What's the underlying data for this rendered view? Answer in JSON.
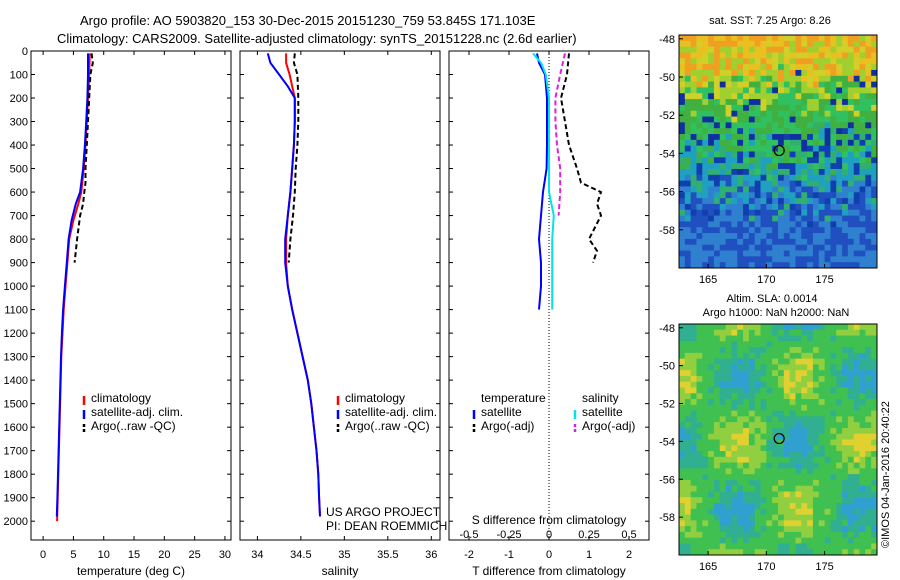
{
  "header": {
    "line1": "Argo profile: AO 5903820_153 30-Dec-2015 20151230_759 53.845S 171.103E",
    "line2": "Climatology: CARS2009. Satellite-adjusted climatology: synTS_20151228.nc (2.6d earlier)"
  },
  "side_label": "©IMOS 04-Jan-2016 20:40:22",
  "project": {
    "line1": "US ARGO PROJECT",
    "line2": "PI: DEAN ROEMMICH"
  },
  "colors": {
    "climatology": "#ff0000",
    "satellite": "#0000ff",
    "argo": "#000000",
    "sal_satellite": "#00e5e5",
    "sal_argo": "#e020e0"
  },
  "chart_data": [
    {
      "id": "temperature",
      "type": "line",
      "xlabel": "temperature (deg C)",
      "ylabel": "",
      "xlim": [
        -2,
        31
      ],
      "ylim": [
        2080,
        0
      ],
      "xticks": [
        0,
        5,
        10,
        15,
        20,
        25,
        30
      ],
      "yticks": [
        0,
        100,
        200,
        300,
        400,
        500,
        600,
        700,
        800,
        900,
        1000,
        1100,
        1200,
        1300,
        1400,
        1500,
        1600,
        1700,
        1800,
        1900,
        2000
      ],
      "legend": {
        "position": "bottom-right",
        "entries": [
          "climatology",
          "satellite-adj. clim.",
          "Argo(..raw -QC)"
        ]
      },
      "series": [
        {
          "name": "climatology",
          "color": "#ff0000",
          "dash": "",
          "points": [
            [
              7.7,
              10
            ],
            [
              7.6,
              100
            ],
            [
              7.4,
              200
            ],
            [
              7.2,
              300
            ],
            [
              7.0,
              400
            ],
            [
              6.7,
              500
            ],
            [
              6.3,
              600
            ],
            [
              5.8,
              650
            ],
            [
              5.0,
              720
            ],
            [
              4.3,
              800
            ],
            [
              4.0,
              900
            ],
            [
              3.7,
              1000
            ],
            [
              3.4,
              1100
            ],
            [
              3.2,
              1200
            ],
            [
              3.0,
              1300
            ],
            [
              2.9,
              1400
            ],
            [
              2.8,
              1500
            ],
            [
              2.7,
              1600
            ],
            [
              2.6,
              1700
            ],
            [
              2.5,
              1800
            ],
            [
              2.4,
              1900
            ],
            [
              2.3,
              2000
            ]
          ]
        },
        {
          "name": "satellite-adj. clim.",
          "color": "#0000ff",
          "dash": "",
          "points": [
            [
              7.4,
              10
            ],
            [
              7.4,
              100
            ],
            [
              7.3,
              200
            ],
            [
              7.1,
              300
            ],
            [
              6.9,
              400
            ],
            [
              6.6,
              500
            ],
            [
              6.1,
              600
            ],
            [
              5.4,
              650
            ],
            [
              4.7,
              720
            ],
            [
              4.2,
              800
            ],
            [
              3.9,
              900
            ],
            [
              3.6,
              1000
            ],
            [
              3.3,
              1100
            ],
            [
              3.1,
              1200
            ],
            [
              2.95,
              1300
            ],
            [
              2.85,
              1400
            ],
            [
              2.75,
              1500
            ],
            [
              2.65,
              1600
            ],
            [
              2.55,
              1700
            ],
            [
              2.45,
              1800
            ],
            [
              2.35,
              1900
            ],
            [
              2.25,
              1980
            ]
          ]
        },
        {
          "name": "Argo(..raw -QC)",
          "color": "#000000",
          "dash": "5,3",
          "points": [
            [
              8.0,
              10
            ],
            [
              8.2,
              50
            ],
            [
              7.8,
              100
            ],
            [
              7.6,
              200
            ],
            [
              7.4,
              300
            ],
            [
              7.2,
              400
            ],
            [
              7.0,
              500
            ],
            [
              7.0,
              560
            ],
            [
              6.8,
              600
            ],
            [
              6.6,
              650
            ],
            [
              6.1,
              700
            ],
            [
              5.6,
              800
            ],
            [
              5.2,
              900
            ]
          ]
        }
      ]
    },
    {
      "id": "salinity",
      "type": "line",
      "xlabel": "salinity",
      "ylabel": "",
      "xlim": [
        33.8,
        36.1
      ],
      "ylim": [
        2080,
        0
      ],
      "xticks": [
        34,
        34.5,
        35,
        35.5,
        36
      ],
      "legend": {
        "position": "bottom-right",
        "entries": [
          "climatology",
          "satellite-adj. clim.",
          "Argo(..raw -QC)"
        ]
      },
      "series": [
        {
          "name": "climatology",
          "color": "#ff0000",
          "dash": "",
          "points": [
            [
              34.33,
              10
            ],
            [
              34.33,
              50
            ],
            [
              34.37,
              100
            ],
            [
              34.4,
              150
            ],
            [
              34.43,
              200
            ],
            [
              34.43,
              300
            ],
            [
              34.42,
              400
            ],
            [
              34.4,
              500
            ],
            [
              34.38,
              600
            ],
            [
              34.35,
              700
            ],
            [
              34.33,
              800
            ],
            [
              34.33,
              900
            ],
            [
              34.35,
              1000
            ],
            [
              34.4,
              1100
            ],
            [
              34.46,
              1200
            ],
            [
              34.52,
              1300
            ],
            [
              34.58,
              1400
            ],
            [
              34.62,
              1500
            ],
            [
              34.65,
              1600
            ],
            [
              34.68,
              1700
            ],
            [
              34.7,
              1800
            ],
            [
              34.71,
              1900
            ],
            [
              34.72,
              1980
            ]
          ]
        },
        {
          "name": "satellite-adj. clim.",
          "color": "#0000ff",
          "dash": "",
          "points": [
            [
              34.12,
              10
            ],
            [
              34.15,
              50
            ],
            [
              34.25,
              100
            ],
            [
              34.35,
              150
            ],
            [
              34.43,
              200
            ],
            [
              34.43,
              300
            ],
            [
              34.42,
              400
            ],
            [
              34.4,
              500
            ],
            [
              34.38,
              600
            ],
            [
              34.35,
              700
            ],
            [
              34.32,
              800
            ],
            [
              34.32,
              900
            ],
            [
              34.35,
              1000
            ],
            [
              34.4,
              1100
            ],
            [
              34.46,
              1200
            ],
            [
              34.52,
              1300
            ],
            [
              34.58,
              1400
            ],
            [
              34.62,
              1500
            ],
            [
              34.65,
              1600
            ],
            [
              34.68,
              1700
            ],
            [
              34.7,
              1800
            ],
            [
              34.71,
              1900
            ],
            [
              34.72,
              1980
            ]
          ]
        },
        {
          "name": "Argo(..raw -QC)",
          "color": "#000000",
          "dash": "5,3",
          "points": [
            [
              34.43,
              10
            ],
            [
              34.42,
              50
            ],
            [
              34.46,
              100
            ],
            [
              34.47,
              200
            ],
            [
              34.47,
              300
            ],
            [
              34.46,
              400
            ],
            [
              34.44,
              500
            ],
            [
              34.43,
              600
            ],
            [
              34.41,
              700
            ],
            [
              34.38,
              800
            ],
            [
              34.36,
              900
            ]
          ]
        }
      ]
    },
    {
      "id": "difference",
      "type": "line",
      "xlabel": "T difference from climatology",
      "x2label": "S difference from climatology",
      "ylabel": "",
      "xlim": [
        -2.5,
        2.5
      ],
      "x2lim": [
        -0.625,
        0.625
      ],
      "ylim": [
        2080,
        0
      ],
      "xticks": [
        -2,
        -1,
        0,
        1,
        2
      ],
      "x2ticks": [
        -0.5,
        -0.25,
        0,
        0.25,
        0.5
      ],
      "x2ticklabels": [
        "-0.5",
        "-0.25",
        "0",
        "0.25",
        "0.5"
      ],
      "legend": {
        "position": "bottom",
        "headers": [
          "temperature",
          "salinity"
        ],
        "entries": [
          "satellite",
          "Argo(-adj)",
          "satellite",
          "Argo(-adj)"
        ]
      },
      "series": [
        {
          "name": "satellite",
          "group": "temperature",
          "color": "#0000ff",
          "dash": "",
          "points": [
            [
              -0.3,
              10
            ],
            [
              -0.25,
              50
            ],
            [
              -0.1,
              100
            ],
            [
              -0.05,
              200
            ],
            [
              -0.05,
              300
            ],
            [
              -0.05,
              400
            ],
            [
              -0.06,
              500
            ],
            [
              -0.15,
              600
            ],
            [
              -0.2,
              700
            ],
            [
              -0.25,
              800
            ],
            [
              -0.2,
              900
            ],
            [
              -0.2,
              1000
            ],
            [
              -0.25,
              1100
            ]
          ]
        },
        {
          "name": "Argo(-adj)",
          "group": "temperature",
          "color": "#000000",
          "dash": "5,3",
          "points": [
            [
              0.5,
              10
            ],
            [
              0.45,
              100
            ],
            [
              0.3,
              200
            ],
            [
              0.4,
              300
            ],
            [
              0.5,
              400
            ],
            [
              0.7,
              500
            ],
            [
              0.8,
              560
            ],
            [
              1.3,
              600
            ],
            [
              1.2,
              650
            ],
            [
              1.3,
              700
            ],
            [
              1.0,
              800
            ],
            [
              1.2,
              850
            ],
            [
              1.1,
              900
            ]
          ]
        },
        {
          "name": "satellite",
          "group": "salinity",
          "color": "#00e5e5",
          "dash": "",
          "points": [
            [
              -0.1,
              10
            ],
            [
              -0.05,
              50
            ],
            [
              -0.02,
              100
            ],
            [
              0.0,
              200
            ],
            [
              0.0,
              400
            ],
            [
              0.0,
              600
            ],
            [
              0.03,
              700
            ],
            [
              0.02,
              800
            ],
            [
              0.02,
              900
            ],
            [
              0.02,
              1000
            ],
            [
              0.02,
              1100
            ]
          ]
        },
        {
          "name": "Argo(-adj)",
          "group": "salinity",
          "color": "#e020e0",
          "dash": "5,3",
          "points": [
            [
              0.1,
              10
            ],
            [
              0.07,
              100
            ],
            [
              0.04,
              200
            ],
            [
              0.04,
              300
            ],
            [
              0.05,
              400
            ],
            [
              0.07,
              500
            ],
            [
              0.07,
              600
            ],
            [
              0.06,
              700
            ]
          ]
        }
      ]
    },
    {
      "id": "sst-map",
      "type": "heatmap",
      "title": "sat. SST: 7.25  Argo: 8.26",
      "xlim": [
        162.5,
        179.5
      ],
      "ylim": [
        -60,
        -47.8
      ],
      "xticks": [
        165,
        170,
        175
      ],
      "yticks": [
        -48,
        -50,
        -52,
        -54,
        -56,
        -58
      ],
      "marker": [
        171.1,
        -53.85
      ]
    },
    {
      "id": "sla-map",
      "type": "heatmap",
      "title": "Altim. SLA: 0.0014",
      "subtitle": "Argo h1000: NaN  h2000: NaN",
      "xlim": [
        162.5,
        179.5
      ],
      "ylim": [
        -60,
        -47.8
      ],
      "xticks": [
        165,
        170,
        175
      ],
      "yticks": [
        -48,
        -50,
        -52,
        -54,
        -56,
        -58
      ],
      "marker": [
        171.1,
        -53.85
      ]
    }
  ]
}
